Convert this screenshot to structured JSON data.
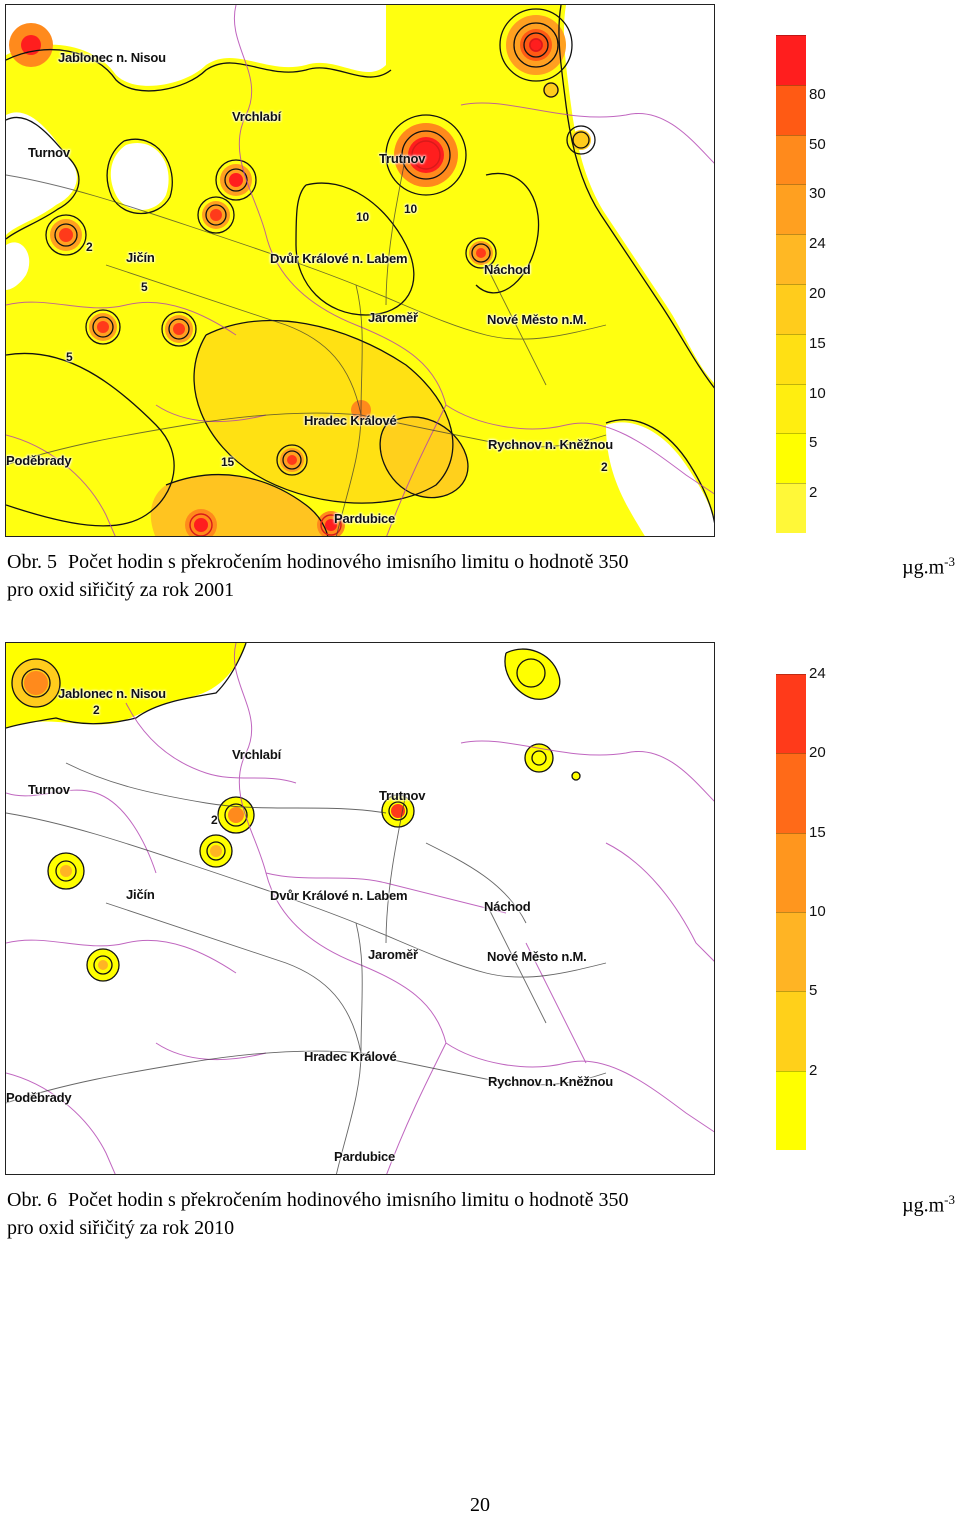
{
  "figure_1": {
    "label": "Obr. 5",
    "title": "Počet hodin s překročením hodinového imisního limitu o hodnotě 350",
    "unit": "µg.m",
    "unit_exponent": "-3",
    "title_line_2": "pro oxid siřičitý za rok 2001",
    "legend": {
      "ticks": [
        "80",
        "50",
        "30",
        "24",
        "20",
        "15",
        "10",
        "5",
        "2"
      ],
      "colors": [
        "#ff1e1e",
        "#ff5a14",
        "#ff8a1c",
        "#ffa020",
        "#ffb824",
        "#ffcc1c",
        "#ffe014",
        "#ffee10",
        "#ffff00",
        "#fff838"
      ]
    },
    "contour_labels": [
      "2",
      "5",
      "10",
      "15",
      "2",
      "5",
      "10"
    ],
    "cities": [
      "Jablonec n. Nisou",
      "Vrchlabí",
      "Turnov",
      "Trutnov",
      "Jičín",
      "Dvůr Králové n. Labem",
      "Náchod",
      "Jaroměř",
      "Nové Město n.M.",
      "Hradec Králové",
      "Rychnov n. Kněžnou",
      "Poděbrady",
      "Pardubice"
    ]
  },
  "figure_2": {
    "label": "Obr. 6",
    "title": "Počet hodin s překročením hodinového imisního limitu o hodnotě 350",
    "unit": "µg.m",
    "unit_exponent": "-3",
    "title_line_2": "pro oxid siřičitý za rok 2010",
    "legend": {
      "ticks": [
        "24",
        "20",
        "15",
        "10",
        "5",
        "2"
      ],
      "colors": [
        "#ff3a1a",
        "#ff6a18",
        "#ff961e",
        "#ffb424",
        "#ffd01a",
        "#ffff00"
      ]
    },
    "contour_labels": [
      "2",
      "2"
    ],
    "cities": [
      "Jablonec n. Nisou",
      "Vrchlabí",
      "Turnov",
      "Trutnov",
      "Jičín",
      "Dvůr Králové n. Labem",
      "Náchod",
      "Jaroměř",
      "Nové Město n.M.",
      "Hradec Králové",
      "Rychnov n. Kněžnou",
      "Poděbrady",
      "Pardubice"
    ]
  },
  "page_number": "20"
}
